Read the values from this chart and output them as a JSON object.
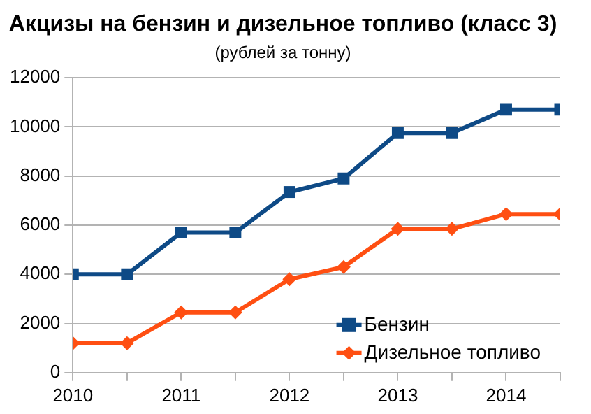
{
  "chart_data": {
    "type": "line",
    "title": "Акцизы на бензин и дизельное топливо (класс 3)",
    "subtitle": "(рублей за тонну)",
    "x": [
      2010,
      2010.5,
      2011,
      2011.5,
      2012,
      2012.5,
      2013,
      2013.5,
      2014,
      2014.5
    ],
    "series": [
      {
        "name": "Бензин",
        "color": "#0e4a86",
        "marker": "square",
        "values": [
          4000,
          4000,
          5700,
          5700,
          7350,
          7900,
          9750,
          9750,
          10700,
          10700
        ]
      },
      {
        "name": "Дизельное топливо",
        "color": "#ff4f12",
        "marker": "diamond",
        "values": [
          1200,
          1200,
          2450,
          2450,
          3800,
          4300,
          5850,
          5850,
          6450,
          6450
        ]
      }
    ],
    "xlim": [
      2010,
      2014.5
    ],
    "xticks": [
      2010,
      {
        "value": 2010.5,
        "label": null
      },
      2011,
      {
        "value": 2011.5,
        "label": null
      },
      2012,
      {
        "value": 2012.5,
        "label": null
      },
      2013,
      {
        "value": 2013.5,
        "label": null
      },
      2014,
      {
        "value": 2014.5,
        "label": null
      }
    ],
    "ylim": [
      0,
      12000
    ],
    "yticks": [
      0,
      2000,
      4000,
      6000,
      8000,
      10000,
      12000
    ],
    "grid": "y",
    "legend": "bottom right",
    "line_style": "solid"
  }
}
